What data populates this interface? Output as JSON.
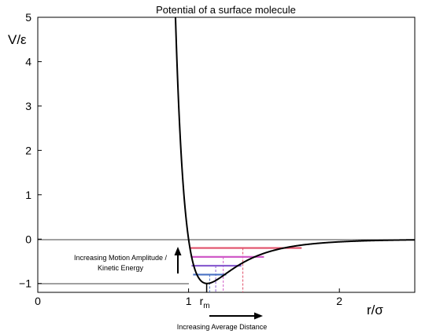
{
  "chart_data": {
    "type": "line",
    "title": "Potential of a surface molecule",
    "xlabel": "r/σ",
    "ylabel": "V/ε",
    "xlim": [
      0,
      2.5
    ],
    "ylim": [
      -1.2,
      5
    ],
    "xticks": [
      {
        "value": 0,
        "label": "0"
      },
      {
        "value": 1,
        "label": "1"
      },
      {
        "value": 2,
        "label": "2"
      }
    ],
    "yticks": [
      {
        "value": -1,
        "label": "−1"
      },
      {
        "value": 0,
        "label": "0"
      },
      {
        "value": 1,
        "label": "1"
      },
      {
        "value": 2,
        "label": "2"
      },
      {
        "value": 3,
        "label": "3"
      },
      {
        "value": 4,
        "label": "4"
      },
      {
        "value": 5,
        "label": "5"
      }
    ],
    "grid": false,
    "reference_lines": [
      {
        "axis": "y",
        "value": 0
      },
      {
        "axis": "y",
        "value": -1
      }
    ],
    "series": [
      {
        "function": "4*(r^-12 - r^-6)",
        "x": [
          0.905,
          0.92,
          0.94,
          0.96,
          0.98,
          1.0,
          1.02,
          1.04,
          1.06,
          1.08,
          1.1,
          1.12,
          1.14,
          1.16,
          1.18,
          1.2,
          1.25,
          1.3,
          1.35,
          1.4,
          1.5,
          1.6,
          1.7,
          1.8,
          2.0,
          2.2,
          2.5
        ],
        "y": [
          5.0,
          3.79,
          2.59,
          1.68,
          0.99,
          0.0,
          -0.41,
          -0.68,
          -0.85,
          -0.95,
          -0.99,
          -1.0,
          -0.99,
          -0.96,
          -0.93,
          -0.9,
          -0.8,
          -0.7,
          -0.61,
          -0.52,
          -0.38,
          -0.28,
          -0.2,
          -0.15,
          -0.06,
          -0.04,
          -0.02
        ]
      }
    ],
    "energy_levels": [
      {
        "energy": -0.8,
        "x_left": 1.03,
        "x_right": 1.25,
        "mean_r": 1.14,
        "color": "#4a72c4"
      },
      {
        "energy": -0.6,
        "x_left": 1.02,
        "x_right": 1.35,
        "mean_r": 1.18,
        "color": "#8a5fd0"
      },
      {
        "energy": -0.4,
        "x_left": 1.02,
        "x_right": 1.5,
        "mean_r": 1.23,
        "color": "#d05ac8"
      },
      {
        "energy": -0.2,
        "x_left": 1.01,
        "x_right": 1.75,
        "mean_r": 1.36,
        "color": "#e0506a"
      }
    ],
    "marker": {
      "label_main": "r",
      "label_sub": "m",
      "x": 1.12
    },
    "annotations": [
      {
        "text_lines": [
          "Increasing Motion Amplitude /",
          "Kinetic Energy"
        ],
        "arrow": "up"
      },
      {
        "text": "Increasing Average Distance",
        "arrow": "right"
      }
    ]
  }
}
